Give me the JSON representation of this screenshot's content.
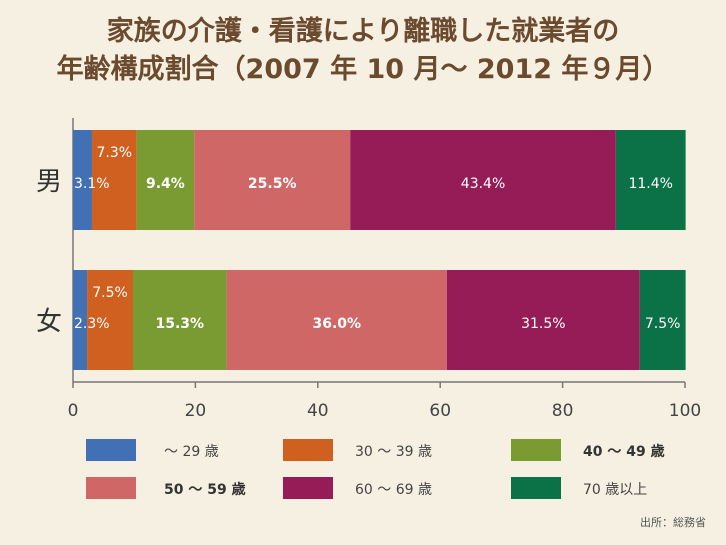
{
  "title_line1": "家族の介護・看護により離職した就業者の",
  "title_line2": "年齢構成割合（2007 年 10 月～ 2012 年９月）",
  "source": "出所：総務省",
  "chart_data": {
    "type": "bar",
    "orientation": "horizontal",
    "stacked": true,
    "categories": [
      "男",
      "女"
    ],
    "series": [
      {
        "name": "～ 29 歳",
        "color": "#4170b4",
        "values": [
          3.1,
          2.3
        ],
        "labels": [
          "3.1%",
          "2.3%"
        ],
        "label_bold": false
      },
      {
        "name": "30 ～ 39 歳",
        "color": "#d0601f",
        "values": [
          7.3,
          7.5
        ],
        "labels": [
          "7.3%",
          "7.5%"
        ],
        "label_bold": false
      },
      {
        "name": "40 ～ 49 歳",
        "color": "#7a9a32",
        "values": [
          9.4,
          15.3
        ],
        "labels": [
          "9.4%",
          "15.3%"
        ],
        "label_bold": true
      },
      {
        "name": "50 ～ 59 歳",
        "color": "#d06767",
        "values": [
          25.5,
          36.0
        ],
        "labels": [
          "25.5%",
          "36.0%"
        ],
        "label_bold": true
      },
      {
        "name": "60 ～ 69 歳",
        "color": "#961c57",
        "values": [
          43.4,
          31.5
        ],
        "labels": [
          "43.4%",
          "31.5%"
        ],
        "label_bold": false
      },
      {
        "name": "70 歳以上",
        "color": "#0b7146",
        "values": [
          11.4,
          7.5
        ],
        "labels": [
          "11.4%",
          "7.5%"
        ],
        "label_bold": false
      }
    ],
    "xlim": [
      0,
      100
    ],
    "xticks": [
      0,
      20,
      40,
      60,
      80,
      100
    ],
    "legend_position": "bottom",
    "grid": false
  }
}
